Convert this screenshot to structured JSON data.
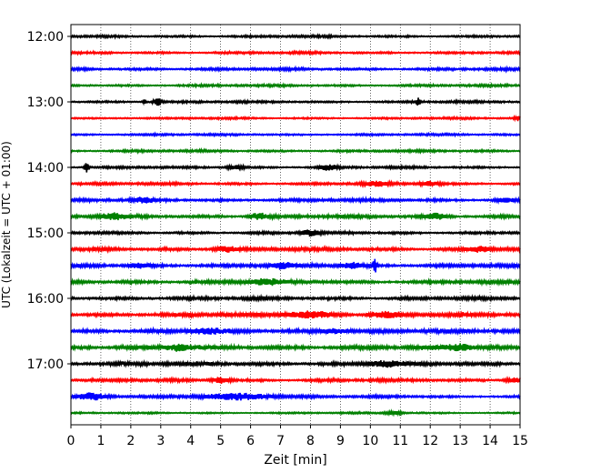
{
  "chart_data": {
    "type": "line",
    "title": "",
    "xlabel": "Zeit  [min]",
    "ylabel": "UTC (Lokalzeit = UTC + 01:00)",
    "xlim": [
      0,
      15
    ],
    "x_ticks": [
      "0",
      "1",
      "2",
      "3",
      "4",
      "5",
      "6",
      "7",
      "8",
      "9",
      "10",
      "11",
      "12",
      "13",
      "14",
      "15"
    ],
    "y_tick_labels": [
      "12:00",
      "13:00",
      "14:00",
      "15:00",
      "16:00",
      "17:00"
    ],
    "y_tick_row_index": [
      0,
      4,
      8,
      12,
      16,
      20
    ],
    "trace_interval_minutes": 15,
    "grid": "vertical dotted at each minute",
    "color_cycle": [
      "#000000",
      "#ff0000",
      "#0000ff",
      "#008000"
    ],
    "rows": [
      {
        "start": "12:00",
        "color": "#000000",
        "noise": 0.35,
        "events": []
      },
      {
        "start": "12:15",
        "color": "#ff0000",
        "noise": 0.35,
        "events": []
      },
      {
        "start": "12:30",
        "color": "#0000ff",
        "noise": 0.4,
        "events": []
      },
      {
        "start": "12:45",
        "color": "#008000",
        "noise": 0.35,
        "events": []
      },
      {
        "start": "13:00",
        "color": "#000000",
        "noise": 0.35,
        "events": [
          {
            "t": 2.9,
            "amp": 1.2,
            "w": 0.15
          },
          {
            "t": 2.45,
            "amp": 0.8,
            "w": 0.05
          },
          {
            "t": 11.6,
            "amp": 1.3,
            "w": 0.05
          }
        ]
      },
      {
        "start": "13:15",
        "color": "#ff0000",
        "noise": 0.3,
        "events": [
          {
            "t": 14.9,
            "amp": 0.8,
            "w": 0.1
          }
        ]
      },
      {
        "start": "13:30",
        "color": "#0000ff",
        "noise": 0.3,
        "events": []
      },
      {
        "start": "13:45",
        "color": "#008000",
        "noise": 0.35,
        "events": []
      },
      {
        "start": "14:00",
        "color": "#000000",
        "noise": 0.35,
        "events": [
          {
            "t": 0.52,
            "amp": 1.6,
            "w": 0.06
          },
          {
            "t": 8.6,
            "amp": 0.8,
            "w": 0.3
          },
          {
            "t": 5.5,
            "amp": 0.7,
            "w": 0.3
          }
        ]
      },
      {
        "start": "14:15",
        "color": "#ff0000",
        "noise": 0.4,
        "events": [
          {
            "t": 10.2,
            "amp": 0.7,
            "w": 0.4
          },
          {
            "t": 12.0,
            "amp": 0.7,
            "w": 0.3
          }
        ]
      },
      {
        "start": "14:30",
        "color": "#0000ff",
        "noise": 0.45,
        "events": [
          {
            "t": 2.4,
            "amp": 0.7,
            "w": 0.3
          },
          {
            "t": 14.5,
            "amp": 0.7,
            "w": 0.3
          }
        ]
      },
      {
        "start": "14:45",
        "color": "#008000",
        "noise": 0.5,
        "events": [
          {
            "t": 1.4,
            "amp": 0.9,
            "w": 0.4
          },
          {
            "t": 6.3,
            "amp": 1.0,
            "w": 0.3
          },
          {
            "t": 12.2,
            "amp": 0.9,
            "w": 0.4
          }
        ]
      },
      {
        "start": "15:00",
        "color": "#000000",
        "noise": 0.4,
        "events": [
          {
            "t": 8.0,
            "amp": 0.9,
            "w": 0.3
          }
        ]
      },
      {
        "start": "15:15",
        "color": "#ff0000",
        "noise": 0.55,
        "events": [
          {
            "t": 5.2,
            "amp": 0.8,
            "w": 0.4
          },
          {
            "t": 13.7,
            "amp": 0.8,
            "w": 0.4
          }
        ]
      },
      {
        "start": "15:30",
        "color": "#0000ff",
        "noise": 0.55,
        "events": [
          {
            "t": 10.15,
            "amp": 3.5,
            "w": 0.05
          },
          {
            "t": 9.4,
            "amp": 0.9,
            "w": 0.4
          },
          {
            "t": 2.3,
            "amp": 0.8,
            "w": 0.4
          },
          {
            "t": 7.0,
            "amp": 0.8,
            "w": 0.4
          }
        ]
      },
      {
        "start": "15:45",
        "color": "#008000",
        "noise": 0.55,
        "events": [
          {
            "t": 6.5,
            "amp": 0.8,
            "w": 0.5
          }
        ]
      },
      {
        "start": "16:00",
        "color": "#000000",
        "noise": 0.5,
        "events": []
      },
      {
        "start": "16:15",
        "color": "#ff0000",
        "noise": 0.6,
        "events": [
          {
            "t": 8.0,
            "amp": 1.0,
            "w": 0.8
          },
          {
            "t": 10.5,
            "amp": 0.8,
            "w": 0.5
          }
        ]
      },
      {
        "start": "16:30",
        "color": "#0000ff",
        "noise": 0.6,
        "events": [
          {
            "t": 4.5,
            "amp": 0.8,
            "w": 0.5
          },
          {
            "t": 8.8,
            "amp": 0.8,
            "w": 0.5
          }
        ]
      },
      {
        "start": "16:45",
        "color": "#008000",
        "noise": 0.65,
        "events": [
          {
            "t": 3.6,
            "amp": 0.9,
            "w": 0.4
          },
          {
            "t": 13.0,
            "amp": 0.9,
            "w": 0.5
          }
        ]
      },
      {
        "start": "17:00",
        "color": "#000000",
        "noise": 0.6,
        "events": [
          {
            "t": 10.5,
            "amp": 0.8,
            "w": 0.5
          }
        ]
      },
      {
        "start": "17:15",
        "color": "#ff0000",
        "noise": 0.45,
        "events": [
          {
            "t": 5.0,
            "amp": 0.9,
            "w": 0.3
          },
          {
            "t": 14.8,
            "amp": 0.8,
            "w": 0.3
          }
        ]
      },
      {
        "start": "17:30",
        "color": "#0000ff",
        "noise": 0.4,
        "events": [
          {
            "t": 0.7,
            "amp": 1.0,
            "w": 0.5
          },
          {
            "t": 5.6,
            "amp": 1.0,
            "w": 1.3
          }
        ]
      },
      {
        "start": "17:45",
        "color": "#008000",
        "noise": 0.25,
        "events": [
          {
            "t": 10.8,
            "amp": 0.5,
            "w": 0.3
          }
        ]
      }
    ]
  }
}
